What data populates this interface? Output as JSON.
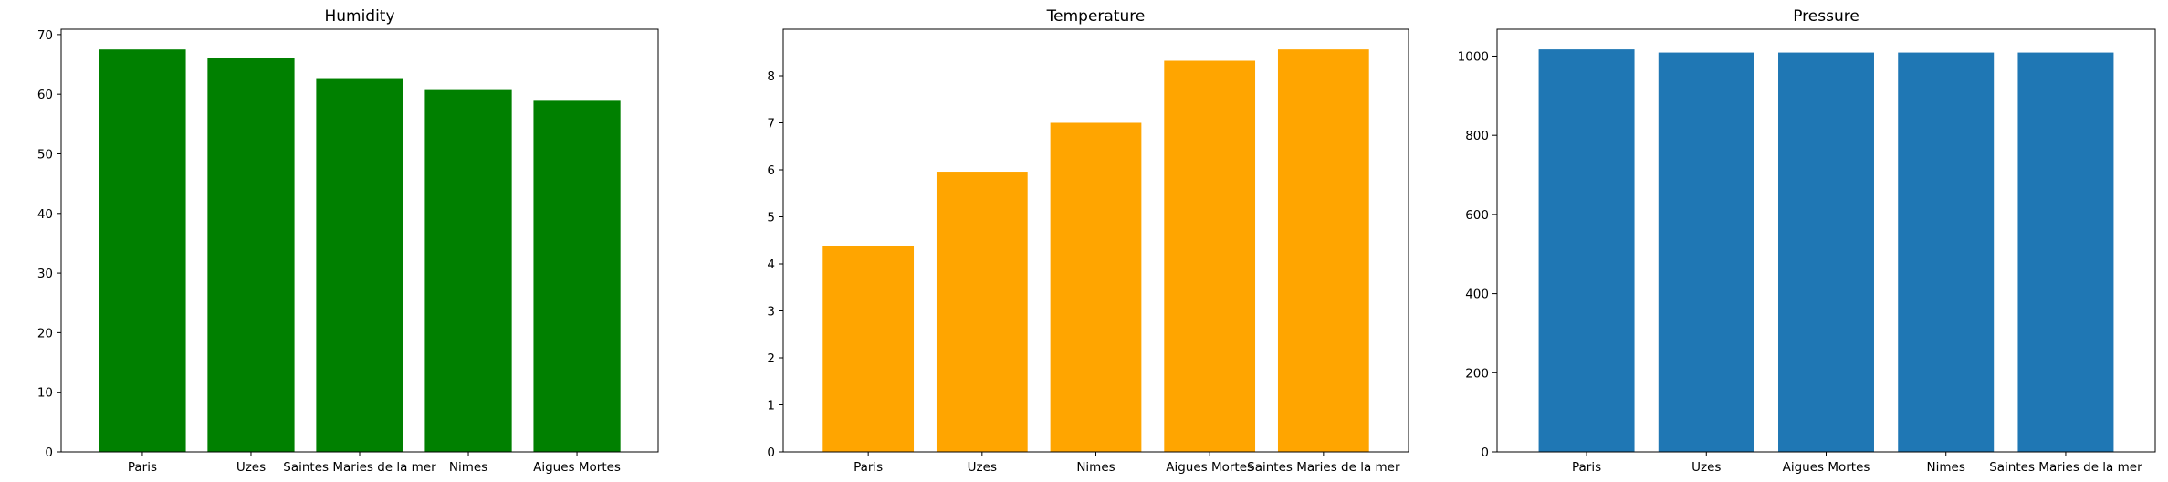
{
  "chart_data": [
    {
      "type": "bar",
      "title": "Humidity",
      "categories": [
        "Paris",
        "Uzes",
        "Saintes Maries de la mer",
        "Nimes",
        "Aigues Mortes"
      ],
      "values": [
        67.5,
        66.0,
        62.7,
        60.7,
        58.9
      ],
      "ylim": [
        0,
        70.9
      ],
      "yticks": [
        0,
        10,
        20,
        30,
        40,
        50,
        60,
        70
      ],
      "color": "#008000",
      "xlabel": "",
      "ylabel": ""
    },
    {
      "type": "bar",
      "title": "Temperature",
      "categories": [
        "Paris",
        "Uzes",
        "Nimes",
        "Aigues Mortes",
        "Saintes Maries de la mer"
      ],
      "values": [
        4.38,
        5.96,
        7.0,
        8.32,
        8.56
      ],
      "ylim": [
        0,
        8.99
      ],
      "yticks": [
        0,
        1,
        2,
        3,
        4,
        5,
        6,
        7,
        8
      ],
      "color": "#FFA500",
      "xlabel": "",
      "ylabel": ""
    },
    {
      "type": "bar",
      "title": "Pressure",
      "categories": [
        "Paris",
        "Uzes",
        "Aigues Mortes",
        "Nimes",
        "Saintes Maries de la mer"
      ],
      "values": [
        1017,
        1009,
        1009,
        1009,
        1009
      ],
      "ylim": [
        0,
        1068
      ],
      "yticks": [
        0,
        200,
        400,
        600,
        800,
        1000
      ],
      "color": "#1F77B4",
      "xlabel": "",
      "ylabel": ""
    }
  ]
}
